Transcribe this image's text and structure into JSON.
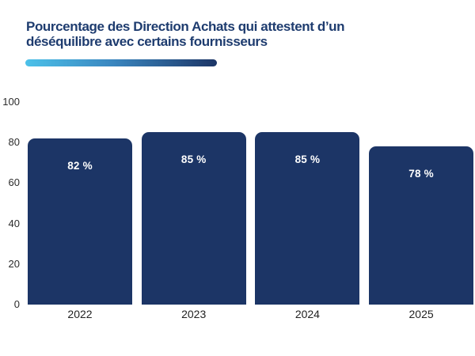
{
  "title_lines": [
    "Pourcentage des Direction Achats qui attestent d’un",
    "déséquilibre avec certains fournisseurs"
  ],
  "colors": {
    "title": "#1e3c6f",
    "bar": "#1c3566",
    "gradient_start": "#4cc1e9",
    "gradient_mid": "#3a87c0",
    "gradient_end": "#1c3566",
    "axis_text": "#2b2b2b",
    "value_label_text": "#ffffff",
    "background": "#ffffff"
  },
  "chart_data": {
    "type": "bar",
    "title": "Pourcentage des Direction Achats qui attestent d’un déséquilibre avec certains fournisseurs",
    "categories": [
      "2022",
      "2023",
      "2024",
      "2025"
    ],
    "values": [
      82,
      85,
      85,
      78
    ],
    "value_labels": [
      "82 %",
      "85 %",
      "85 %",
      "78 %"
    ],
    "xlabel": "",
    "ylabel": "",
    "ylim": [
      0,
      100
    ],
    "yticks": [
      0,
      20,
      40,
      60,
      80,
      100
    ],
    "grid": false,
    "legend": false,
    "bar_color": "#1c3566"
  }
}
